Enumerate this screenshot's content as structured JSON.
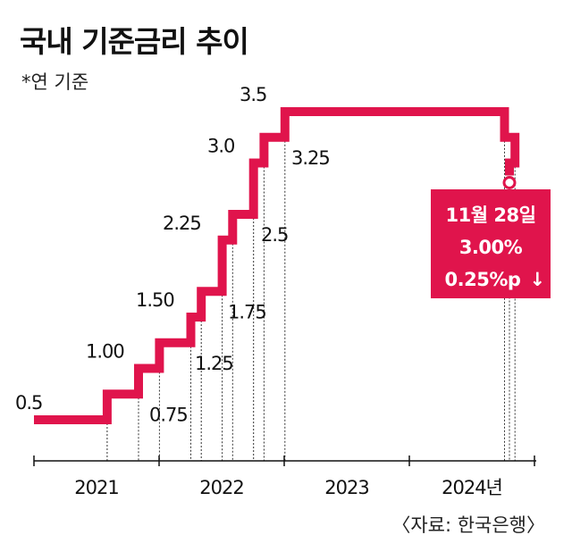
{
  "header": {
    "title": "국내 기준금리 추이",
    "subtitle": "*연 기준"
  },
  "source": "〈자료: 한국은행〉",
  "colors": {
    "line": "#e0144c",
    "axis": "#111111",
    "guide": "#333333"
  },
  "chart_data": {
    "type": "line",
    "step": "post",
    "title": "국내 기준금리 추이",
    "ylabel": "*연 기준",
    "unit": "%",
    "ylim": [
      0.5,
      3.5
    ],
    "x_categories": [
      "2021",
      "2022",
      "2023",
      "2024년"
    ],
    "series": [
      {
        "values": [
          {
            "x": "2021-01",
            "y": 0.5,
            "label": "0.5"
          },
          {
            "x": "2021-08",
            "y": 0.75,
            "label": "0.75"
          },
          {
            "x": "2021-11",
            "y": 1.0,
            "label": "1.00"
          },
          {
            "x": "2022-01",
            "y": 1.25,
            "label": "1.25"
          },
          {
            "x": "2022-04",
            "y": 1.5,
            "label": "1.50"
          },
          {
            "x": "2022-05",
            "y": 1.75,
            "label": "1.75"
          },
          {
            "x": "2022-07",
            "y": 2.25,
            "label": "2.25"
          },
          {
            "x": "2022-08",
            "y": 2.5,
            "label": "2.5"
          },
          {
            "x": "2022-10",
            "y": 3.0,
            "label": "3.0"
          },
          {
            "x": "2022-11",
            "y": 3.25,
            "label": "3.25"
          },
          {
            "x": "2023-01",
            "y": 3.5,
            "label": "3.5"
          },
          {
            "x": "2024-10",
            "y": 3.25,
            "label": ""
          },
          {
            "x": "2024-11",
            "y": 3.0,
            "label": ""
          }
        ]
      }
    ],
    "annotation": {
      "line1": "11월 28일",
      "line2": "3.00%",
      "line3": "0.25%p",
      "arrow": "↓"
    }
  }
}
